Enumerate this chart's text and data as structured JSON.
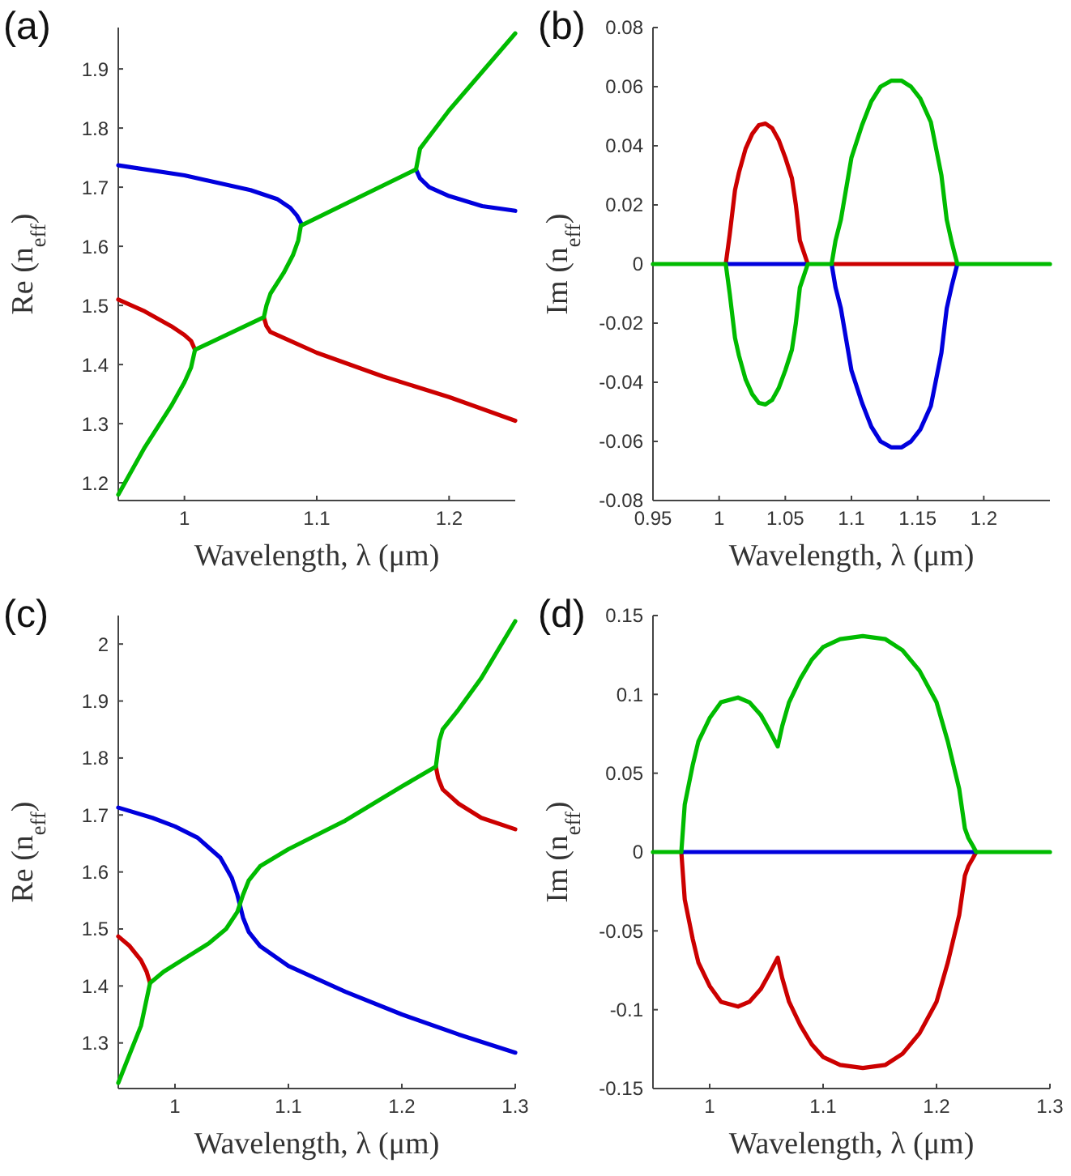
{
  "chart_data": [
    {
      "type": "line",
      "title": "(a)",
      "xlabel": "Wavelength, λ (μm)",
      "ylabel": "Re (n$_{eff}$)",
      "xlim": [
        0.95,
        1.25
      ],
      "xticks": [
        1,
        1.1,
        1.2
      ],
      "ylim": [
        1.17,
        1.97
      ],
      "yticks": [
        1.2,
        1.3,
        1.4,
        1.5,
        1.6,
        1.7,
        1.8,
        1.9
      ],
      "grid": false,
      "series": [
        {
          "color": "#cc0000",
          "x": [
            0.95,
            0.97,
            0.99,
            1.0,
            1.005,
            1.008,
            null,
            1.06,
            1.062,
            1.065,
            1.08,
            1.1,
            1.15,
            1.2,
            1.25
          ],
          "values": [
            1.51,
            1.49,
            1.465,
            1.45,
            1.44,
            1.425,
            null,
            1.48,
            1.465,
            1.455,
            1.44,
            1.42,
            1.38,
            1.345,
            1.305
          ]
        },
        {
          "color": "#0000dd",
          "x": [
            0.95,
            1.0,
            1.05,
            1.07,
            1.08,
            1.085,
            1.088,
            null,
            1.175,
            1.178,
            1.185,
            1.2,
            1.225,
            1.25
          ],
          "values": [
            1.737,
            1.72,
            1.695,
            1.68,
            1.665,
            1.652,
            1.64,
            null,
            1.73,
            1.715,
            1.7,
            1.685,
            1.668,
            1.66
          ]
        },
        {
          "color": "#00bb00",
          "x": [
            0.95,
            0.97,
            0.99,
            1.0,
            1.005,
            1.008,
            1.06,
            1.062,
            1.065,
            1.075,
            1.082,
            1.086,
            1.088,
            1.175,
            1.178,
            1.183,
            1.2,
            1.225,
            1.25
          ],
          "values": [
            1.18,
            1.26,
            1.33,
            1.37,
            1.395,
            1.425,
            1.48,
            1.5,
            1.52,
            1.555,
            1.585,
            1.61,
            1.635,
            1.73,
            1.765,
            1.78,
            1.83,
            1.895,
            1.96
          ]
        }
      ]
    },
    {
      "type": "line",
      "title": "(b)",
      "xlabel": "Wavelength, λ (μm)",
      "ylabel": "Im (n$_{eff}$)",
      "xlim": [
        0.95,
        1.25
      ],
      "xticks": [
        0.95,
        1,
        1.05,
        1.1,
        1.15,
        1.2
      ],
      "ylim": [
        -0.08,
        0.08
      ],
      "yticks": [
        -0.08,
        -0.06,
        -0.04,
        -0.02,
        0,
        0.02,
        0.04,
        0.06,
        0.08
      ],
      "grid": false,
      "series": [
        {
          "color": "#cc0000",
          "x": [
            1.005,
            1.008,
            1.012,
            1.015,
            1.02,
            1.025,
            1.03,
            1.035,
            1.04,
            1.045,
            1.05,
            1.055,
            1.058,
            1.061,
            1.064,
            1.067,
            null,
            1.085,
            1.18
          ],
          "values": [
            0,
            0.01,
            0.025,
            0.031,
            0.039,
            0.044,
            0.047,
            0.0475,
            0.046,
            0.042,
            0.036,
            0.029,
            0.02,
            0.008,
            0.004,
            0,
            null,
            0,
            0
          ]
        },
        {
          "color": "#0000dd",
          "x": [
            1.005,
            1.065,
            null,
            1.085,
            1.088,
            1.092,
            1.1,
            1.108,
            1.115,
            1.122,
            1.13,
            1.138,
            1.145,
            1.152,
            1.16,
            1.168,
            1.172,
            1.176,
            1.18
          ],
          "values": [
            0,
            0,
            null,
            0,
            -0.008,
            -0.015,
            -0.036,
            -0.047,
            -0.055,
            -0.06,
            -0.062,
            -0.062,
            -0.06,
            -0.056,
            -0.048,
            -0.03,
            -0.015,
            -0.007,
            0
          ]
        },
        {
          "color": "#00bb00",
          "x": [
            0.95,
            1.005,
            1.008,
            1.012,
            1.015,
            1.02,
            1.025,
            1.03,
            1.035,
            1.04,
            1.045,
            1.05,
            1.055,
            1.058,
            1.061,
            1.064,
            1.067,
            1.085,
            1.088,
            1.092,
            1.1,
            1.108,
            1.115,
            1.122,
            1.13,
            1.138,
            1.145,
            1.152,
            1.16,
            1.168,
            1.172,
            1.176,
            1.18,
            1.25
          ],
          "values": [
            0,
            0,
            -0.01,
            -0.025,
            -0.031,
            -0.039,
            -0.044,
            -0.047,
            -0.0475,
            -0.046,
            -0.042,
            -0.036,
            -0.029,
            -0.02,
            -0.008,
            -0.004,
            0,
            0,
            0.008,
            0.015,
            0.036,
            0.047,
            0.055,
            0.06,
            0.062,
            0.062,
            0.06,
            0.056,
            0.048,
            0.03,
            0.015,
            0.007,
            0,
            0
          ]
        }
      ]
    },
    {
      "type": "line",
      "title": "(c)",
      "xlabel": "Wavelength, λ (μm)",
      "ylabel": "Re (n$_{eff}$)",
      "xlim": [
        0.95,
        1.3
      ],
      "xticks": [
        1,
        1.1,
        1.2,
        1.3
      ],
      "ylim": [
        1.22,
        2.05
      ],
      "yticks": [
        1.3,
        1.4,
        1.5,
        1.6,
        1.7,
        1.8,
        1.9,
        2
      ],
      "grid": false,
      "series": [
        {
          "color": "#cc0000",
          "x": [
            0.95,
            0.96,
            0.97,
            0.975,
            0.978,
            null,
            1.23,
            1.232,
            1.236,
            1.25,
            1.27,
            1.3
          ],
          "values": [
            1.487,
            1.47,
            1.445,
            1.425,
            1.405,
            null,
            1.785,
            1.765,
            1.745,
            1.72,
            1.695,
            1.675
          ]
        },
        {
          "color": "#0000dd",
          "x": [
            0.95,
            0.98,
            1.0,
            1.02,
            1.04,
            1.05,
            1.055,
            1.06,
            1.065,
            1.075,
            1.1,
            1.15,
            1.2,
            1.25,
            1.3
          ],
          "values": [
            1.713,
            1.695,
            1.68,
            1.66,
            1.625,
            1.59,
            1.56,
            1.52,
            1.495,
            1.47,
            1.435,
            1.39,
            1.35,
            1.315,
            1.283
          ]
        },
        {
          "color": "#00bb00",
          "x": [
            0.95,
            0.96,
            0.97,
            0.978,
            0.99,
            1.01,
            1.03,
            1.045,
            1.055,
            1.06,
            1.065,
            1.075,
            1.1,
            1.15,
            1.2,
            1.23,
            1.233,
            1.236,
            1.25,
            1.27,
            1.3
          ],
          "values": [
            1.23,
            1.28,
            1.33,
            1.405,
            1.425,
            1.45,
            1.475,
            1.5,
            1.53,
            1.56,
            1.585,
            1.61,
            1.64,
            1.69,
            1.75,
            1.785,
            1.83,
            1.85,
            1.885,
            1.94,
            2.04
          ]
        }
      ]
    },
    {
      "type": "line",
      "title": "(d)",
      "xlabel": "Wavelength, λ (μm)",
      "ylabel": "Im (n$_{eff}$)",
      "xlim": [
        0.95,
        1.3
      ],
      "xticks": [
        1,
        1.1,
        1.2,
        1.3
      ],
      "ylim": [
        -0.15,
        0.15
      ],
      "yticks": [
        -0.15,
        -0.1,
        -0.05,
        0,
        0.05,
        0.1,
        0.15
      ],
      "grid": false,
      "series": [
        {
          "color": "#cc0000",
          "x": [
            0.975,
            0.978,
            0.985,
            0.99,
            1.0,
            1.01,
            1.025,
            1.035,
            1.045,
            1.052,
            1.06,
            1.064,
            1.07,
            1.08,
            1.09,
            1.1,
            1.115,
            1.135,
            1.155,
            1.17,
            1.185,
            1.2,
            1.21,
            1.22,
            1.225,
            1.228,
            1.232,
            1.235
          ],
          "values": [
            0,
            -0.03,
            -0.055,
            -0.07,
            -0.085,
            -0.095,
            -0.098,
            -0.095,
            -0.087,
            -0.078,
            -0.067,
            -0.08,
            -0.095,
            -0.11,
            -0.122,
            -0.13,
            -0.135,
            -0.137,
            -0.135,
            -0.128,
            -0.115,
            -0.095,
            -0.07,
            -0.04,
            -0.015,
            -0.009,
            -0.004,
            0
          ]
        },
        {
          "color": "#0000dd",
          "x": [
            0.975,
            1.235
          ],
          "values": [
            0,
            0
          ]
        },
        {
          "color": "#00bb00",
          "x": [
            0.95,
            0.975,
            0.978,
            0.985,
            0.99,
            1.0,
            1.01,
            1.025,
            1.035,
            1.045,
            1.052,
            1.06,
            1.064,
            1.07,
            1.08,
            1.09,
            1.1,
            1.115,
            1.135,
            1.155,
            1.17,
            1.185,
            1.2,
            1.21,
            1.22,
            1.225,
            1.228,
            1.232,
            1.235,
            1.3
          ],
          "values": [
            0,
            0,
            0.03,
            0.055,
            0.07,
            0.085,
            0.095,
            0.098,
            0.095,
            0.087,
            0.078,
            0.067,
            0.08,
            0.095,
            0.11,
            0.122,
            0.13,
            0.135,
            0.137,
            0.135,
            0.128,
            0.115,
            0.095,
            0.07,
            0.04,
            0.015,
            0.009,
            0.004,
            0,
            0
          ]
        }
      ]
    }
  ]
}
